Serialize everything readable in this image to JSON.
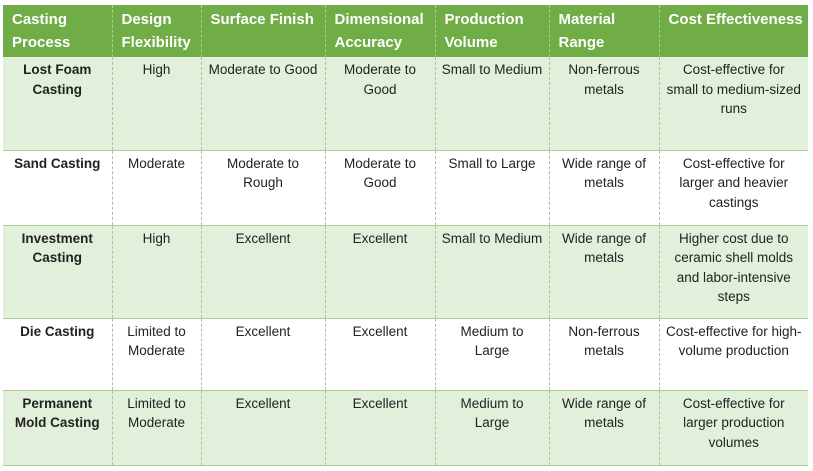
{
  "table": {
    "header": [
      "Casting Process",
      "Design Flexibility",
      "Surface Finish",
      "Dimensional Accuracy",
      "Production Volume",
      "Material Range",
      "Cost Effectiveness"
    ],
    "rows": [
      [
        "Lost Foam Casting",
        "High",
        "Moderate to Good",
        "Moderate to Good",
        "Small to Medium",
        "Non-ferrous metals",
        "Cost-effective for small to medium-sized runs"
      ],
      [
        "Sand Casting",
        "Moderate",
        "Moderate to Rough",
        "Moderate to Good",
        "Small to Large",
        "Wide range of metals",
        "Cost-effective for larger and heavier castings"
      ],
      [
        "Investment Casting",
        "High",
        "Excellent",
        "Excellent",
        "Small to Medium",
        "Wide range of metals",
        "Higher cost due to ceramic shell molds and labor-intensive steps"
      ],
      [
        "Die Casting",
        "Limited to Moderate",
        "Excellent",
        "Excellent",
        "Medium to Large",
        "Non-ferrous metals",
        "Cost-effective for high-volume production"
      ],
      [
        "Permanent Mold Casting",
        "Limited to Moderate",
        "Excellent",
        "Excellent",
        "Medium to Large",
        "Wide range of metals",
        "Cost-effective for larger production volumes"
      ]
    ]
  }
}
